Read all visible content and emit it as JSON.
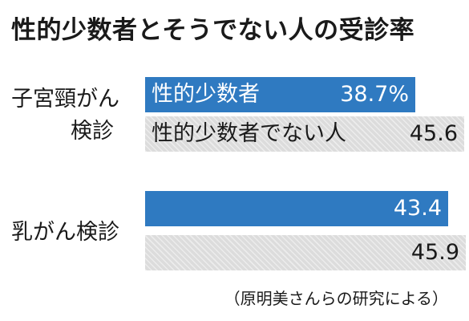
{
  "chart_data": {
    "type": "bar",
    "title": "性的少数者とそうでない人の受診率",
    "categories": [
      "子宮頸がん検診",
      "乳がん検診"
    ],
    "category_lines": [
      [
        "子宮頸がん",
        "検診"
      ],
      [
        "乳がん検診"
      ]
    ],
    "series": [
      {
        "name": "性的少数者",
        "values": [
          38.7,
          43.4
        ],
        "value_labels": [
          "38.7%",
          "43.4"
        ],
        "color": "#2f7ac1"
      },
      {
        "name": "性的少数者でない人",
        "values": [
          45.6,
          45.9
        ],
        "value_labels": [
          "45.6",
          "45.9"
        ],
        "color": "#dcdcdc"
      }
    ],
    "orientation": "horizontal",
    "source": "（原明美さんらの研究による）"
  }
}
